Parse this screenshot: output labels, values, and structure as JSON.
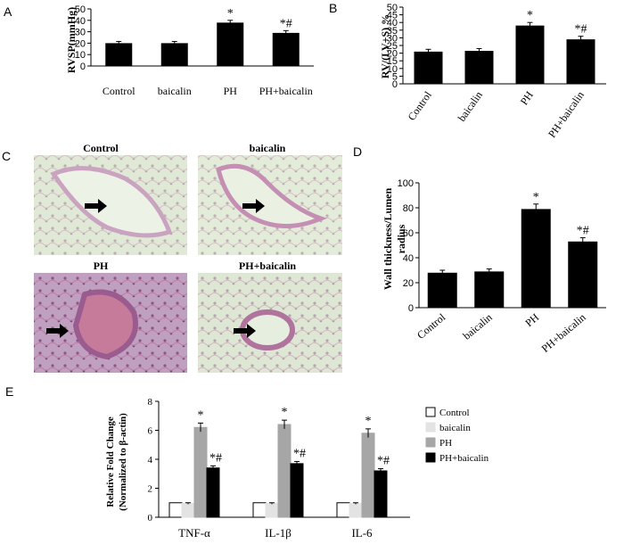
{
  "panels": {
    "A": {
      "letter": "A"
    },
    "B": {
      "letter": "B"
    },
    "C": {
      "letter": "C",
      "images": [
        {
          "caption": "Control",
          "tissue_color": "#c9a3c0",
          "bg_color": "#dfe9d6"
        },
        {
          "caption": "baicalin",
          "tissue_color": "#c48fb3",
          "bg_color": "#e2ecd9"
        },
        {
          "caption": "PH",
          "tissue_color": "#9a5c8f",
          "bg_color": "#bfa0c0"
        },
        {
          "caption": "PH+baicalin",
          "tissue_color": "#b0739e",
          "bg_color": "#dde7d4"
        }
      ]
    },
    "D": {
      "letter": "D"
    },
    "E": {
      "letter": "E"
    }
  },
  "chart_data": [
    {
      "panel": "A",
      "type": "bar",
      "categories": [
        "Control",
        "baicalin",
        "PH",
        "PH+baicalin"
      ],
      "values": [
        20,
        20,
        38,
        29
      ],
      "errors": [
        1.5,
        1.5,
        2,
        2
      ],
      "annotations": [
        "",
        "",
        "*",
        "*#"
      ],
      "ylabel": "RVSP(mmHg)",
      "ylim": [
        0,
        50
      ],
      "yticks": [
        0,
        10,
        20,
        30,
        40,
        50
      ],
      "bar_color": "#000000"
    },
    {
      "panel": "B",
      "type": "bar",
      "categories": [
        "Control",
        "baicalin",
        "PH",
        "PH+baicalin"
      ],
      "values": [
        21,
        21.5,
        38,
        29
      ],
      "errors": [
        1.5,
        1.5,
        2,
        2
      ],
      "annotations": [
        "",
        "",
        "*",
        "*#"
      ],
      "ylabel": "RV/(LV+S) %",
      "ylim": [
        0,
        50
      ],
      "yticks": [
        0,
        5,
        10,
        15,
        20,
        25,
        30,
        35,
        40,
        45,
        50
      ],
      "bar_color": "#000000"
    },
    {
      "panel": "D",
      "type": "bar",
      "categories": [
        "Control",
        "baicalin",
        "PH",
        "PH+baicalin"
      ],
      "values": [
        28,
        29,
        79,
        53
      ],
      "errors": [
        2,
        2,
        4,
        3
      ],
      "annotations": [
        "",
        "",
        "*",
        "*#"
      ],
      "ylabel_lines": [
        "Wall thickness/Lumen",
        "radius"
      ],
      "ylim": [
        0,
        100
      ],
      "yticks": [
        0,
        20,
        40,
        60,
        80,
        100
      ],
      "bar_color": "#000000"
    },
    {
      "panel": "E",
      "type": "bar",
      "categories": [
        "TNF-α",
        "IL-1β",
        "IL-6"
      ],
      "series": [
        {
          "name": "Control",
          "values": [
            1,
            1,
            1
          ],
          "errors": [
            0,
            0,
            0
          ],
          "annotations": [
            "",
            "",
            ""
          ],
          "color": "#ffffff",
          "stroke": "#000000"
        },
        {
          "name": "baicalin",
          "values": [
            0.95,
            0.95,
            0.95
          ],
          "errors": [
            0.05,
            0.05,
            0.05
          ],
          "annotations": [
            "",
            "",
            ""
          ],
          "color": "#e3e3e3",
          "stroke": "#e3e3e3"
        },
        {
          "name": "PH",
          "values": [
            6.2,
            6.4,
            5.8
          ],
          "errors": [
            0.3,
            0.3,
            0.3
          ],
          "annotations": [
            "*",
            "*",
            "*"
          ],
          "color": "#a6a6a6",
          "stroke": "#a6a6a6"
        },
        {
          "name": "PH+baicalin",
          "values": [
            3.4,
            3.7,
            3.2
          ],
          "errors": [
            0.15,
            0.15,
            0.15
          ],
          "annotations": [
            "*#",
            "*#",
            "*#"
          ],
          "color": "#000000",
          "stroke": "#000000"
        }
      ],
      "ylabel_lines": [
        "Relative Fold Change",
        "(Normalized to β-actin)"
      ],
      "ylim": [
        0,
        8
      ],
      "yticks": [
        0,
        2,
        4,
        6,
        8
      ],
      "legend": "right"
    }
  ]
}
